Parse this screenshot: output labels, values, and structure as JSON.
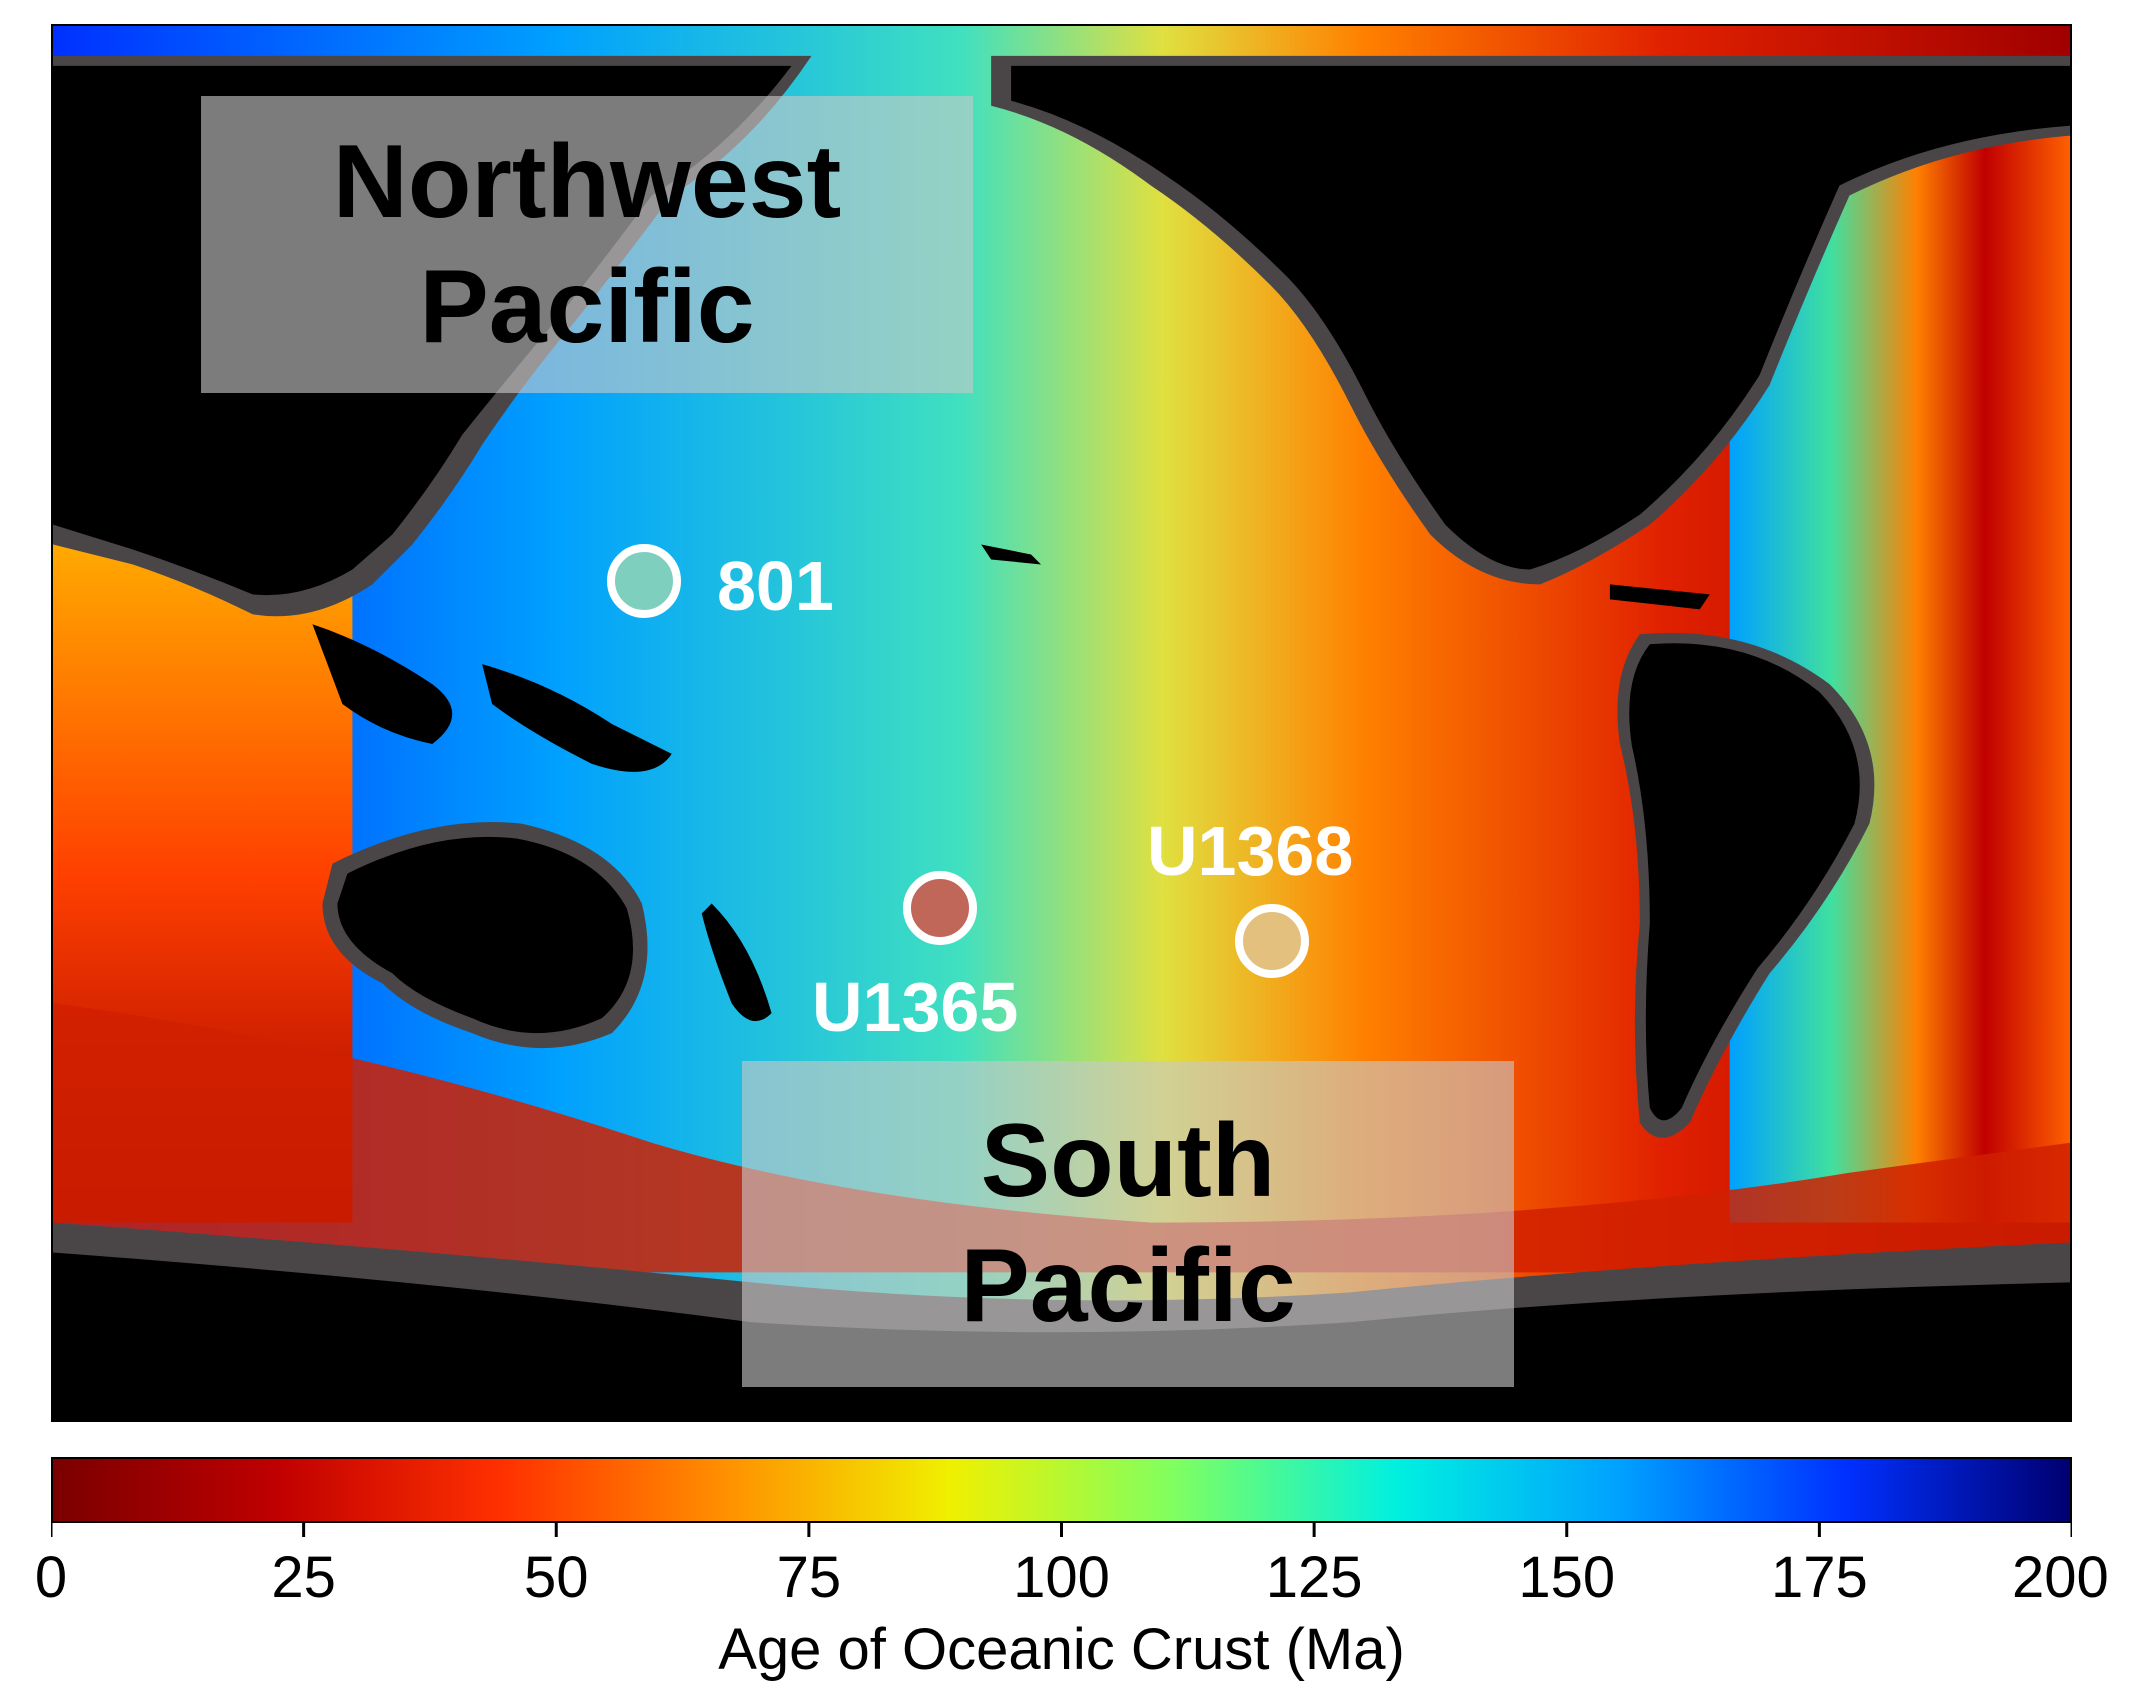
{
  "regions": {
    "northwest": "Northwest\nPacific",
    "south": "South\nPacific"
  },
  "sites": [
    {
      "label": "801",
      "color": "#7fcfbf"
    },
    {
      "label": "U1365",
      "color": "#c0675a"
    },
    {
      "label": "U1368",
      "color": "#e3c07e"
    }
  ],
  "colorbar": {
    "title": "Age of Oceanic Crust (Ma)",
    "min": 0,
    "max": 200,
    "ticks": [
      "0",
      "25",
      "50",
      "75",
      "100",
      "125",
      "150",
      "175",
      "200"
    ],
    "colormap": [
      "#7a0000",
      "#c00000",
      "#ff3000",
      "#ff9000",
      "#f0f000",
      "#80ff60",
      "#00f0e0",
      "#00a0ff",
      "#0030ff",
      "#000070"
    ]
  },
  "colors": {
    "land": "#000000",
    "shelf": "#4a4648",
    "marker_outline": "#ffffff"
  }
}
